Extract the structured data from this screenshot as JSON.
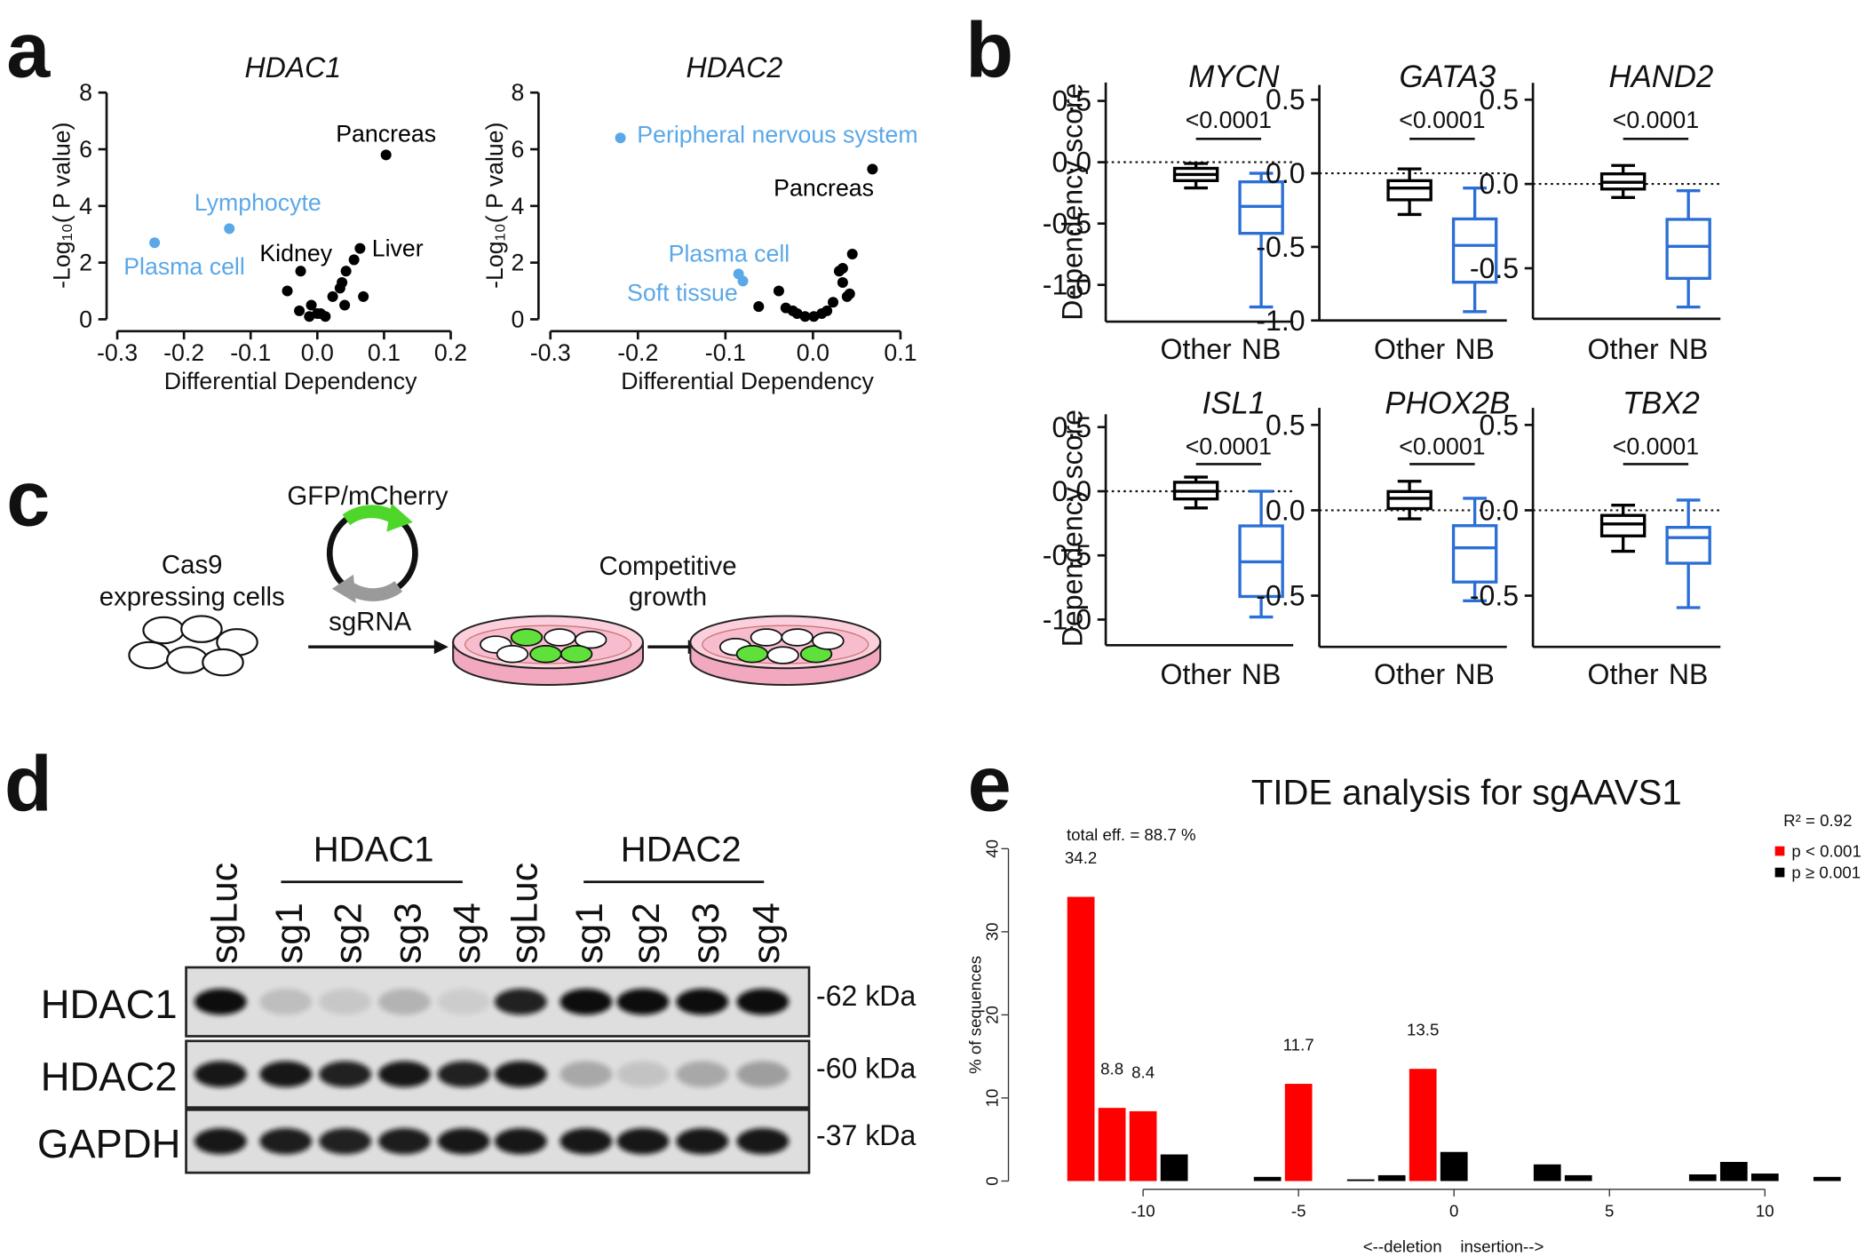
{
  "panel_labels": [
    "a",
    "b",
    "c",
    "d",
    "e"
  ],
  "chart_data": [
    {
      "type": "scatter",
      "title": "HDAC1",
      "xlabel": "Differential Dependency",
      "ylabel": "-Log₁₀( P value)",
      "xlim": [
        -0.3,
        0.2
      ],
      "xticks": [
        -0.3,
        -0.2,
        -0.1,
        {
          "value": 0,
          "label": "0.0"
        },
        0.1,
        0.2
      ],
      "ylim": [
        0,
        8
      ],
      "yticks": [
        0,
        2,
        4,
        6,
        8
      ],
      "series": [
        {
          "color": "#000000",
          "x": [
            0.103,
            0.064,
            -0.025,
            -0.045,
            0.043,
            0.037,
            0.055,
            0.069,
            0.041,
            -0.009,
            0,
            0.012,
            -0.012,
            0.005,
            -0.027,
            0.023,
            0.034
          ],
          "values": [
            5.8,
            2.5,
            1.7,
            1.0,
            1.7,
            1.3,
            2.1,
            0.8,
            0.5,
            0.5,
            0.2,
            0.1,
            0.1,
            0.2,
            0.3,
            0.8,
            1.1
          ],
          "labels": [
            "Pancreas",
            "Liver",
            "Kidney",
            null,
            null,
            null,
            null,
            null,
            null,
            null,
            null,
            null,
            null,
            null,
            null,
            null,
            null
          ]
        },
        {
          "color": "#5ba8e8",
          "x": [
            -0.132,
            -0.244
          ],
          "values": [
            3.2,
            2.7
          ],
          "labels": [
            "Lymphocyte",
            "Plasma cell"
          ]
        }
      ]
    },
    {
      "type": "scatter",
      "title": "HDAC2",
      "xlabel": "Differential Dependency",
      "ylabel": "-Log₁₀( P value)",
      "xlim": [
        -0.3,
        0.1
      ],
      "xticks": [
        -0.3,
        -0.2,
        -0.1,
        {
          "value": 0,
          "label": "0.0"
        },
        0.1
      ],
      "ylim": [
        0,
        8
      ],
      "yticks": [
        0,
        2,
        4,
        6,
        8
      ],
      "series": [
        {
          "color": "#000000",
          "x": [
            0.068,
            -0.039,
            -0.062,
            -0.031,
            -0.023,
            -0.018,
            -0.009,
            0.001,
            0.01,
            0.016,
            0.023,
            0.03,
            0.034,
            0.039,
            0.045,
            0.042,
            0.034
          ],
          "values": [
            5.3,
            1.0,
            0.45,
            0.4,
            0.3,
            0.2,
            0.1,
            0.1,
            0.2,
            0.3,
            0.6,
            1.7,
            1.3,
            0.8,
            2.3,
            0.9,
            1.8
          ],
          "labels": [
            "Pancreas",
            null,
            null,
            null,
            null,
            null,
            null,
            null,
            null,
            null,
            null,
            null,
            null,
            null,
            null,
            null,
            null
          ]
        },
        {
          "color": "#5ba8e8",
          "x": [
            -0.22,
            -0.085,
            -0.08
          ],
          "values": [
            6.4,
            1.6,
            1.35
          ],
          "labels": [
            "Peripheral nervous system",
            "Plasma cell",
            "Soft tissue"
          ]
        }
      ]
    },
    {
      "type": "box",
      "title": "MYCN",
      "ylabel": "Dependency score",
      "annotation": "<0.0001",
      "hline": 0,
      "categories": [
        "Other",
        "NB"
      ],
      "colors": [
        "#000000",
        "#2b6fd6"
      ],
      "min": [
        -0.21,
        -1.18
      ],
      "q1": [
        -0.15,
        -0.58
      ],
      "median": [
        -0.1,
        -0.36
      ],
      "q3": [
        -0.05,
        -0.16
      ],
      "max": [
        -0.01,
        -0.09
      ],
      "ylim": [
        -1.3,
        0.65
      ],
      "yticks": [
        0.5,
        {
          "value": 0,
          "label": "0.0"
        },
        -0.5,
        {
          "value": -1,
          "label": "-1.0"
        }
      ]
    },
    {
      "type": "box",
      "title": "GATA3",
      "annotation": "<0.0001",
      "hline": 0,
      "categories": [
        "Other",
        "NB"
      ],
      "colors": [
        "#000000",
        "#2b6fd6"
      ],
      "min": [
        -0.28,
        -0.94
      ],
      "q1": [
        -0.18,
        -0.74
      ],
      "median": [
        -0.1,
        -0.49
      ],
      "q3": [
        -0.05,
        -0.31
      ],
      "max": [
        0.03,
        -0.1
      ],
      "ylim": [
        -1.0,
        0.6
      ],
      "yticks": [
        0.5,
        {
          "value": 0,
          "label": "0.0"
        },
        -0.5,
        {
          "value": -1,
          "label": "-1.0"
        }
      ]
    },
    {
      "type": "box",
      "title": "HAND2",
      "annotation": "<0.0001",
      "hline": 0,
      "categories": [
        "Other",
        "NB"
      ],
      "colors": [
        "#000000",
        "#2b6fd6"
      ],
      "min": [
        -0.08,
        -0.73
      ],
      "q1": [
        -0.03,
        -0.56
      ],
      "median": [
        0.01,
        -0.37
      ],
      "q3": [
        0.06,
        -0.21
      ],
      "max": [
        0.11,
        -0.04
      ],
      "ylim": [
        -0.8,
        0.6
      ],
      "yticks": [
        0.5,
        {
          "value": 0,
          "label": "0.0"
        },
        -0.5
      ]
    },
    {
      "type": "box",
      "title": "ISL1",
      "ylabel": "Dependency score",
      "annotation": "<0.0001",
      "hline": 0,
      "categories": [
        "Other",
        "NB"
      ],
      "colors": [
        "#000000",
        "#2b6fd6"
      ],
      "min": [
        -0.13,
        -0.98
      ],
      "q1": [
        -0.06,
        -0.82
      ],
      "median": [
        0,
        -0.55
      ],
      "q3": [
        0.07,
        -0.27
      ],
      "max": [
        0.11,
        0
      ],
      "ylim": [
        -1.2,
        0.6
      ],
      "yticks": [
        0.5,
        {
          "value": 0,
          "label": "0.0"
        },
        -0.5,
        {
          "value": -1,
          "label": "-1.0"
        }
      ]
    },
    {
      "type": "box",
      "title": "PHOX2B",
      "annotation": "<0.0001",
      "hline": 0,
      "categories": [
        "Other",
        "NB"
      ],
      "colors": [
        "#000000",
        "#2b6fd6"
      ],
      "min": [
        -0.05,
        -0.53
      ],
      "q1": [
        0.01,
        -0.42
      ],
      "median": [
        0.07,
        -0.22
      ],
      "q3": [
        0.11,
        -0.09
      ],
      "max": [
        0.17,
        0.07
      ],
      "ylim": [
        -0.8,
        0.6
      ],
      "yticks": [
        0.5,
        {
          "value": 0,
          "label": "0.0"
        },
        -0.5
      ]
    },
    {
      "type": "box",
      "title": "TBX2",
      "annotation": "<0.0001",
      "hline": 0,
      "categories": [
        "Other",
        "NB"
      ],
      "colors": [
        "#000000",
        "#2b6fd6"
      ],
      "min": [
        -0.24,
        -0.57
      ],
      "q1": [
        -0.15,
        -0.31
      ],
      "median": [
        -0.08,
        -0.16
      ],
      "q3": [
        -0.03,
        -0.1
      ],
      "max": [
        0.03,
        0.06
      ],
      "ylim": [
        -0.8,
        0.6
      ],
      "yticks": [
        0.5,
        {
          "value": 0,
          "label": "0.0"
        },
        -0.5
      ]
    },
    {
      "type": "bar",
      "title": "TIDE analysis for sgAAVS1",
      "ylabel": "% of sequences",
      "xlabel": "<--deletion    insertion-->",
      "annotations": [
        "total eff. = 88.7 %",
        "R² = 0.92"
      ],
      "legend": "top-right",
      "x": [
        -12,
        -11,
        -10,
        -9,
        -8,
        -7,
        -6,
        -5,
        -4,
        -3,
        -2,
        -1,
        0,
        1,
        2,
        3,
        4,
        5,
        6,
        7,
        8,
        9,
        10,
        11,
        12
      ],
      "series": [
        {
          "name": "p < 0.001",
          "color": "#ff0000",
          "data_labels": true,
          "values": [
            34.2,
            8.8,
            8.4,
            null,
            null,
            null,
            null,
            11.7,
            null,
            null,
            null,
            13.5,
            null,
            null,
            null,
            null,
            null,
            null,
            null,
            null,
            null,
            null,
            null,
            null,
            null
          ]
        },
        {
          "name": "p ≥ 0.001",
          "color": "#000000",
          "values": [
            null,
            null,
            null,
            3.2,
            null,
            null,
            0.5,
            null,
            null,
            0.2,
            0.7,
            null,
            3.5,
            null,
            null,
            2.0,
            0.7,
            null,
            null,
            null,
            0.8,
            2.3,
            0.9,
            null,
            0.5
          ]
        }
      ],
      "xlim": [
        -13.3,
        12.5
      ],
      "xticks": [
        -10,
        -5,
        0,
        5,
        10
      ],
      "ylim": [
        0,
        40
      ],
      "yticks": [
        0,
        10,
        20,
        30,
        40
      ]
    }
  ],
  "diagram": {
    "cells_label": [
      "Cas9",
      "expressing cells"
    ],
    "plasmid_label": "GFP/mCherry",
    "arrow_label": "sgRNA",
    "growth_label": [
      "Competitive",
      "growth"
    ]
  },
  "blot": {
    "groups": [
      "HDAC1",
      "HDAC2"
    ],
    "lanes": [
      "sgLuc",
      "sg1",
      "sg2",
      "sg3",
      "sg4",
      "sgLuc",
      "sg1",
      "sg2",
      "sg3",
      "sg4"
    ],
    "rows": [
      "HDAC1",
      "HDAC2",
      "GAPDH"
    ],
    "sizes": [
      "-62 kDa",
      "-60 kDa",
      "-37 kDa"
    ]
  }
}
